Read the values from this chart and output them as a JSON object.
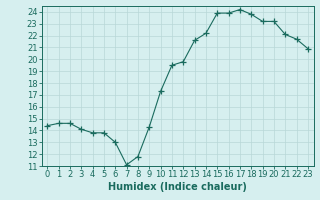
{
  "x": [
    0,
    1,
    2,
    3,
    4,
    5,
    6,
    7,
    8,
    9,
    10,
    11,
    12,
    13,
    14,
    15,
    16,
    17,
    18,
    19,
    20,
    21,
    22,
    23
  ],
  "y": [
    14.4,
    14.6,
    14.6,
    14.1,
    13.8,
    13.8,
    13.0,
    11.1,
    11.8,
    14.3,
    17.3,
    19.5,
    19.8,
    21.6,
    22.2,
    23.9,
    23.9,
    24.2,
    23.8,
    23.2,
    23.2,
    22.1,
    21.7,
    20.9
  ],
  "line_color": "#1a6b5e",
  "marker": "+",
  "marker_size": 4,
  "bg_color": "#d6efef",
  "grid_color": "#b8d8d8",
  "xlabel": "Humidex (Indice chaleur)",
  "xlim": [
    -0.5,
    23.5
  ],
  "ylim": [
    11,
    24.5
  ],
  "yticks": [
    11,
    12,
    13,
    14,
    15,
    16,
    17,
    18,
    19,
    20,
    21,
    22,
    23,
    24
  ],
  "xticks": [
    0,
    1,
    2,
    3,
    4,
    5,
    6,
    7,
    8,
    9,
    10,
    11,
    12,
    13,
    14,
    15,
    16,
    17,
    18,
    19,
    20,
    21,
    22,
    23
  ],
  "tick_color": "#1a6b5e",
  "label_color": "#1a6b5e",
  "font_size": 6,
  "label_font_size": 7
}
